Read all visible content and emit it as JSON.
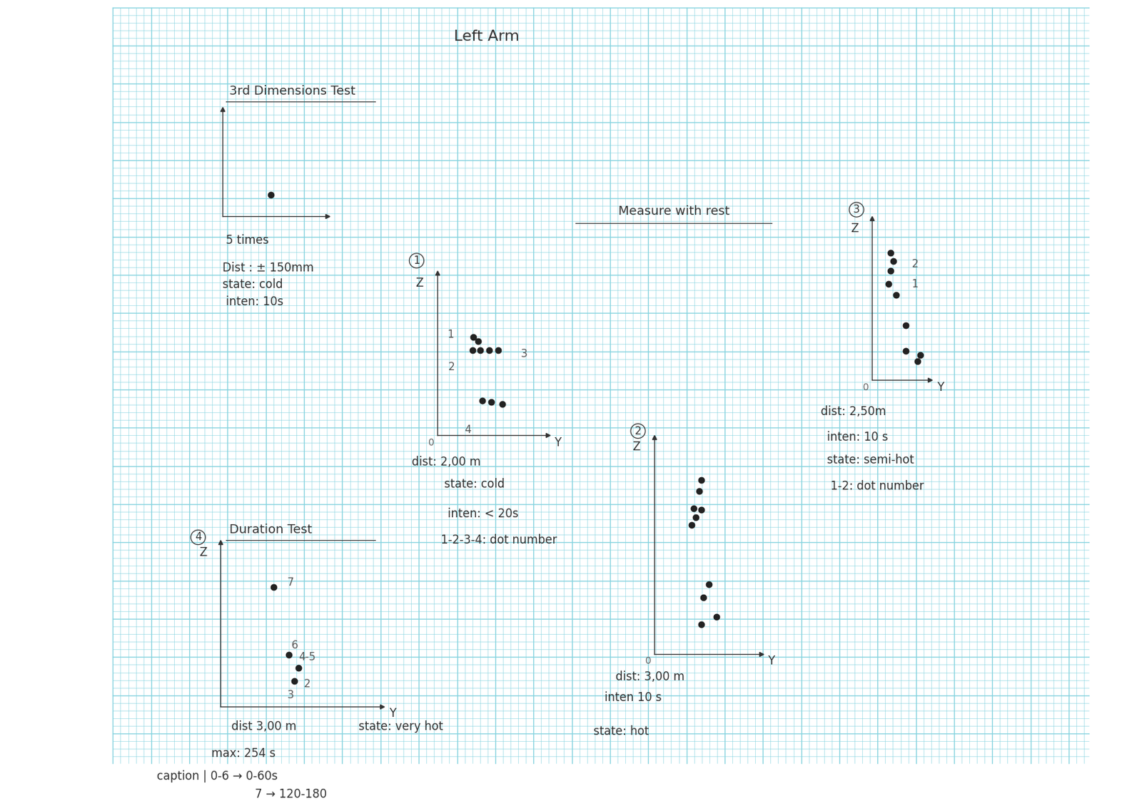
{
  "page": {
    "title": "Left Arm",
    "heading": "Measure with rest"
  },
  "chart_data": [
    {
      "type": "scatter",
      "title": "3rd Dimensions Test",
      "x": [
        4.6
      ],
      "values": [
        2.0
      ],
      "color": "#222222",
      "marker": "o",
      "xlim": [
        0,
        10
      ],
      "ylim": [
        0,
        10
      ],
      "tick_labels": false,
      "notes": [
        "5 times",
        "Dist : ± 150mm",
        "state: cold",
        "inten: 10s"
      ]
    },
    {
      "type": "scatter",
      "number": "1",
      "xlabel": "Y",
      "ylabel": "Z",
      "origin_label": "0",
      "x": [
        3.3,
        3.7,
        3.2,
        3.9,
        4.7,
        5.5,
        4.1,
        4.9,
        5.9
      ],
      "values": [
        9.1,
        8.7,
        7.9,
        7.9,
        7.9,
        7.9,
        3.2,
        3.1,
        2.9
      ],
      "color": "#222222",
      "marker": "o",
      "annotations": [
        {
          "text": "1",
          "x": 1.2,
          "y": 9.3
        },
        {
          "text": "2",
          "x": 1.3,
          "y": 6.3
        },
        {
          "text": "3",
          "x": 7.9,
          "y": 7.5
        },
        {
          "text": "4",
          "x": 2.8,
          "y": 0.5
        }
      ],
      "xlim": [
        0,
        10
      ],
      "ylim": [
        0,
        15
      ],
      "tick_labels": false,
      "notes": [
        "dist: 2,00 m",
        "state: cold",
        "inten: < 20s",
        "1-2-3-4: dot number"
      ]
    },
    {
      "type": "scatter",
      "number": "2",
      "xlabel": "Y",
      "ylabel": "Z",
      "origin_label": "0",
      "x": [
        4.4,
        4.2,
        3.7,
        4.4,
        3.9,
        3.5,
        5.1,
        4.6,
        5.8,
        4.4
      ],
      "values": [
        16.0,
        15.0,
        13.4,
        13.3,
        12.6,
        11.9,
        6.4,
        5.2,
        3.4,
        2.7
      ],
      "color": "#222222",
      "marker": "o",
      "xlim": [
        0,
        10
      ],
      "ylim": [
        0,
        20
      ],
      "tick_labels": false,
      "notes": [
        "dist: 3,00 m",
        "inten 10 s",
        "state: hot"
      ]
    },
    {
      "type": "scatter",
      "number": "3",
      "xlabel": "Y",
      "ylabel": "Z",
      "origin_label": "0",
      "x": [
        1.9,
        2.2,
        1.9,
        1.7,
        2.5,
        3.5,
        3.5,
        5.0,
        4.7
      ],
      "values": [
        12.6,
        11.8,
        10.8,
        9.5,
        8.4,
        5.4,
        2.9,
        2.5,
        1.9
      ],
      "color": "#222222",
      "marker": "o",
      "annotations": [
        {
          "text": "2",
          "x": 4.5,
          "y": 11.5
        },
        {
          "text": "1",
          "x": 4.4,
          "y": 9.5
        }
      ],
      "xlim": [
        0,
        6
      ],
      "ylim": [
        0,
        16
      ],
      "tick_labels": false,
      "notes": [
        "dist: 2,50m",
        "inten: 10 s",
        "state: semi-hot",
        "1-2: dot number"
      ]
    },
    {
      "type": "scatter",
      "number": "4",
      "title": "Duration Test",
      "xlabel": "Y",
      "ylabel": "Z",
      "x": [
        4.9,
        6.3,
        7.2,
        6.8
      ],
      "values": [
        10.9,
        4.7,
        3.5,
        2.3
      ],
      "color": "#222222",
      "marker": "o",
      "annotations": [
        {
          "text": "7",
          "x": 6.5,
          "y": 11.3
        },
        {
          "text": "6",
          "x": 6.9,
          "y": 5.6
        },
        {
          "text": "4-5",
          "x": 8.0,
          "y": 4.5
        },
        {
          "text": "2",
          "x": 8.0,
          "y": 2.0
        },
        {
          "text": "3",
          "x": 6.5,
          "y": 1.0
        }
      ],
      "xlim": [
        0,
        15
      ],
      "ylim": [
        0,
        15
      ],
      "tick_labels": false,
      "notes": [
        "dist 3,00 m",
        "state: very hot",
        "max: 254 s",
        "caption | 0-6 → 0-60s",
        "7 → 120-180"
      ]
    }
  ]
}
